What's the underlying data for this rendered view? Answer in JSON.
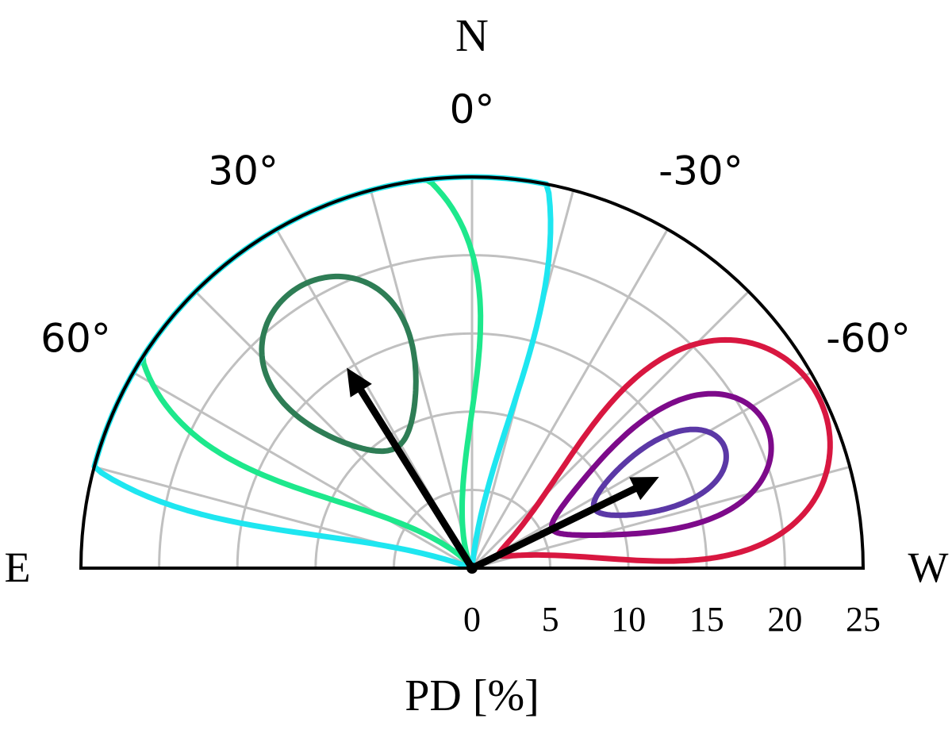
{
  "chart_data": {
    "type": "polar",
    "compass": {
      "north": "N",
      "east": "E",
      "west": "W"
    },
    "xlabel": "PD [%]",
    "r_range": [
      0,
      25
    ],
    "r_ticks": [
      "0",
      "5",
      "10",
      "15",
      "20",
      "25"
    ],
    "angle_ticks": [
      {
        "value": 0,
        "label": "0°"
      },
      {
        "value": 30,
        "label": "30°"
      },
      {
        "value": -30,
        "label": "-30°"
      },
      {
        "value": 60,
        "label": "60°"
      },
      {
        "value": -60,
        "label": "-60°"
      }
    ],
    "angle_grid_step_deg": 15,
    "r_grid_step": 5,
    "grid": true,
    "vectors": [
      {
        "name": "",
        "pd": 15.1,
        "angle_deg": 32
      },
      {
        "name": "",
        "pd": 13.3,
        "angle_deg": -64
      }
    ],
    "contours": [
      {
        "name": "",
        "color": "#2e7d55",
        "center": {
          "pd": 15.1,
          "angle_deg": 32
        },
        "pd_semi_axis": 6.0,
        "angle_semi_axis_deg": 17
      },
      {
        "name": "",
        "color": "#1de88c",
        "center": {
          "pd": 15.1,
          "angle_deg": 32
        },
        "pd_semi_axis": 15.0,
        "angle_semi_axis_deg": 34
      },
      {
        "name": "",
        "color": "#1ee6f0",
        "center": {
          "pd": 15.1,
          "angle_deg": 32
        },
        "pd_semi_axis": 25.0,
        "angle_semi_axis_deg": 47
      },
      {
        "name": "",
        "color": "#5b38a6",
        "center": {
          "pd": 13.3,
          "angle_deg": -64
        },
        "pd_semi_axis": 4.6,
        "angle_semi_axis_deg": 9
      },
      {
        "name": "",
        "color": "#7d0a8a",
        "center": {
          "pd": 13.3,
          "angle_deg": -64
        },
        "pd_semi_axis": 7.6,
        "angle_semi_axis_deg": 15
      },
      {
        "name": "",
        "color": "#d81740",
        "center": {
          "pd": 13.3,
          "angle_deg": -64
        },
        "pd_semi_axis": 11.4,
        "angle_semi_axis_deg": 24
      }
    ],
    "colors": {
      "grid": "#c0c0c0",
      "frame": "#000000",
      "vector": "#000000"
    }
  }
}
